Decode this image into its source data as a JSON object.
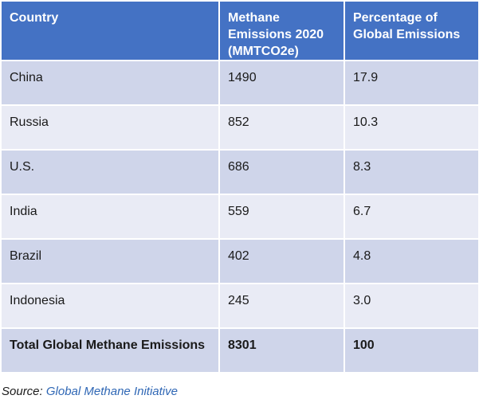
{
  "chart_data": {
    "type": "table",
    "columns": [
      "Country",
      "Methane Emissions 2020 (MMTCO2e)",
      "Percentage of Global Emissions"
    ],
    "header_lines": [
      [
        "Country"
      ],
      [
        "Methane",
        "Emissions 2020",
        "(MMTCO2e)"
      ],
      [
        "Percentage of",
        "Global Emissions"
      ]
    ],
    "rows": [
      [
        "China",
        "1490",
        "17.9"
      ],
      [
        "Russia",
        "852",
        "10.3"
      ],
      [
        "U.S.",
        "686",
        "8.3"
      ],
      [
        "India",
        "559",
        "6.7"
      ],
      [
        "Brazil",
        "402",
        "4.8"
      ],
      [
        "Indonesia",
        "245",
        "3.0"
      ],
      [
        "Total Global Methane Emissions",
        "8301",
        "100"
      ]
    ],
    "total_row_index": 6
  },
  "source": {
    "prefix": "Source: ",
    "name": "Global Methane Initiative"
  },
  "colors": {
    "header_bg": "#4472c4",
    "row_dark": "#cfd5ea",
    "row_light": "#e9ebf5",
    "link": "#2f67b5"
  }
}
